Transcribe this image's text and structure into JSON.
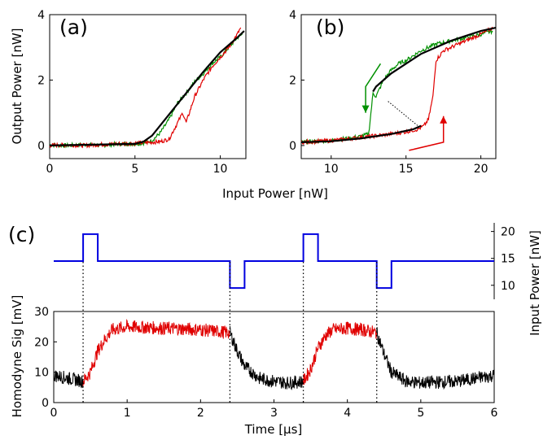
{
  "colors": {
    "green": "#009000",
    "red": "#e00000",
    "black": "#000000",
    "blue": "#0000e0"
  },
  "shared": {
    "xlabel_ab": "Input Power [nW]"
  },
  "chart_data": [
    {
      "panel": "(a)",
      "type": "line",
      "xlim": [
        0,
        11.5
      ],
      "ylim": [
        -0.4,
        4
      ],
      "xticks": [
        "0",
        "5",
        "10"
      ],
      "yticks": [
        "0",
        "2",
        "4"
      ],
      "xlabel": "",
      "ylabel": "Output Power [nW]",
      "series": [
        {
          "color": "green",
          "x": [
            0,
            1,
            2,
            3,
            4,
            5,
            5.5,
            6,
            6.5,
            7,
            7.5,
            8,
            8.5,
            9,
            9.5,
            10,
            10.5,
            11,
            11.3
          ],
          "y": [
            0.02,
            0.0,
            0.03,
            0.0,
            0.05,
            0.05,
            0.08,
            0.15,
            0.4,
            0.8,
            1.3,
            1.6,
            1.95,
            2.2,
            2.5,
            2.7,
            3.0,
            3.3,
            3.4
          ]
        },
        {
          "color": "red",
          "x": [
            0,
            1,
            2,
            3,
            4,
            5,
            6,
            6.5,
            7,
            7.5,
            7.8,
            8,
            8.5,
            9,
            9.5,
            10,
            10.5,
            11,
            11.2
          ],
          "y": [
            0.0,
            0.02,
            0.0,
            0.03,
            0.05,
            0.07,
            0.1,
            0.12,
            0.2,
            0.7,
            1.0,
            0.7,
            1.5,
            2.0,
            2.4,
            2.7,
            3.0,
            3.4,
            3.6
          ]
        },
        {
          "color": "black",
          "x": [
            0,
            5,
            5.5,
            6,
            7,
            8,
            9,
            10,
            11,
            11.4
          ],
          "y": [
            0.0,
            0.05,
            0.12,
            0.3,
            0.95,
            1.6,
            2.25,
            2.85,
            3.3,
            3.5
          ]
        }
      ]
    },
    {
      "panel": "(b)",
      "type": "line",
      "xlim": [
        8,
        21
      ],
      "ylim": [
        -0.4,
        4
      ],
      "xticks": [
        "10",
        "15",
        "20"
      ],
      "yticks": [
        "0",
        "2",
        "4"
      ],
      "xlabel": "",
      "ylabel": "",
      "series": [
        {
          "color": "green",
          "x": [
            8,
            10,
            12,
            12.5,
            12.8,
            13,
            13.5,
            14,
            14.5,
            15,
            16,
            17,
            18,
            19,
            20,
            20.8
          ],
          "y": [
            0.1,
            0.15,
            0.28,
            0.35,
            1.6,
            1.5,
            2.0,
            2.3,
            2.5,
            2.6,
            2.9,
            3.1,
            3.2,
            3.3,
            3.4,
            3.5
          ]
        },
        {
          "color": "red",
          "x": [
            8,
            10,
            12,
            14,
            15,
            15.8,
            16.2,
            16.5,
            16.8,
            17,
            17.5,
            18,
            19,
            20,
            20.8
          ],
          "y": [
            0.1,
            0.15,
            0.25,
            0.35,
            0.42,
            0.5,
            0.6,
            0.8,
            1.5,
            2.6,
            2.9,
            3.0,
            3.2,
            3.4,
            3.6
          ]
        },
        {
          "color": "black",
          "x": [
            8,
            10,
            12,
            14,
            15.5,
            16
          ],
          "y": [
            0.1,
            0.13,
            0.22,
            0.35,
            0.5,
            0.6
          ]
        },
        {
          "color": "black",
          "x": [
            12.8,
            13,
            14,
            15,
            16,
            17,
            18,
            19,
            20,
            21
          ],
          "y": [
            1.65,
            1.8,
            2.2,
            2.5,
            2.8,
            3.0,
            3.2,
            3.35,
            3.5,
            3.6
          ]
        }
      ],
      "dotted": {
        "x": [
          13.8,
          15.8
        ],
        "y": [
          1.35,
          0.6
        ]
      },
      "arrows": [
        {
          "color": "green",
          "x": [
            13.3,
            12.3,
            12.3
          ],
          "y": [
            2.5,
            1.8,
            1.0
          ]
        },
        {
          "color": "red",
          "x": [
            15.2,
            17.5,
            17.5
          ],
          "y": [
            -0.15,
            0.1,
            0.9
          ]
        }
      ]
    },
    {
      "panel": "(c)",
      "type": "line",
      "xlim": [
        0,
        6
      ],
      "xticks": [
        "0",
        "1",
        "2",
        "3",
        "4",
        "5",
        "6"
      ],
      "xlabel": "Time [μs]",
      "top": {
        "ylim": [
          8,
          21
        ],
        "yticks": [
          "10",
          "15",
          "20"
        ],
        "ylabel": "Input Power [nW]",
        "series": [
          {
            "color": "blue",
            "x": [
              0,
              0.4,
              0.4,
              0.6,
              0.6,
              2.4,
              2.4,
              2.6,
              2.6,
              3.4,
              3.4,
              3.6,
              3.6,
              4.4,
              4.4,
              4.6,
              4.6,
              6.0
            ],
            "y": [
              14.5,
              14.5,
              19.5,
              19.5,
              14.5,
              14.5,
              9.5,
              9.5,
              14.5,
              14.5,
              19.5,
              19.5,
              14.5,
              14.5,
              9.5,
              9.5,
              14.5,
              14.5
            ]
          }
        ]
      },
      "bottom": {
        "ylim": [
          0,
          30
        ],
        "yticks": [
          "0",
          "10",
          "20",
          "30"
        ],
        "ylabel": "Homodyne Sig [mV]",
        "series": [
          {
            "color": "black",
            "x": [
              0,
              0.1,
              0.2,
              0.3,
              0.4
            ],
            "y": [
              9,
              8.5,
              8,
              7.5,
              7
            ]
          },
          {
            "color": "red",
            "x": [
              0.4,
              0.5,
              0.6,
              0.7,
              0.8,
              1.0,
              1.5,
              2.0,
              2.4
            ],
            "y": [
              7,
              10,
              17,
              21,
              24,
              25,
              24.5,
              24,
              23
            ]
          },
          {
            "color": "black",
            "x": [
              2.4,
              2.5,
              2.6,
              2.8,
              3.0,
              3.2,
              3.4
            ],
            "y": [
              23,
              17,
              12,
              8,
              7,
              6.5,
              7
            ]
          },
          {
            "color": "red",
            "x": [
              3.4,
              3.5,
              3.6,
              3.7,
              3.8,
              4.0,
              4.2,
              4.4
            ],
            "y": [
              7,
              11,
              18,
              22,
              24,
              24.5,
              24,
              23
            ]
          },
          {
            "color": "black",
            "x": [
              4.4,
              4.5,
              4.6,
              4.8,
              5.0,
              5.5,
              6.0
            ],
            "y": [
              23,
              16,
              10,
              7,
              6.5,
              7,
              9
            ]
          }
        ]
      },
      "vlines": [
        0.4,
        2.4,
        3.4,
        4.4
      ]
    }
  ]
}
